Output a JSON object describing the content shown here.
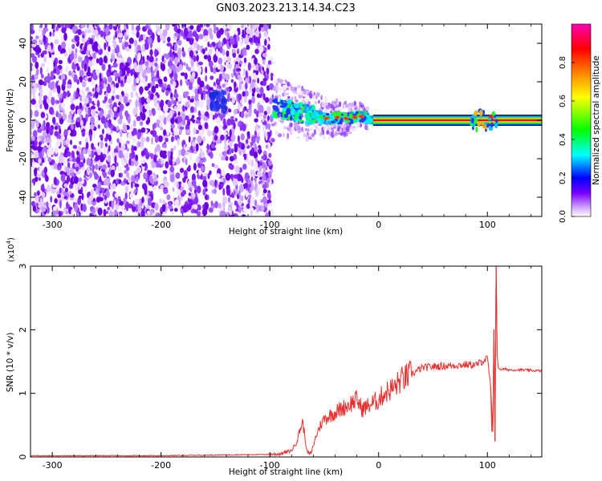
{
  "title": "GN03.2023.213.14.34.C23",
  "chart_data": [
    {
      "type": "heatmap",
      "xlabel": "Height of straight line (km)",
      "ylabel": "Frequency (Hz)",
      "xlim": [
        -320,
        150
      ],
      "ylim": [
        -50,
        50
      ],
      "x_ticks": [
        -300,
        -200,
        -100,
        0,
        100
      ],
      "y_ticks": [
        -40,
        -20,
        0,
        20,
        40
      ],
      "colorbar": {
        "label": "Normalized spectral amplitude",
        "range": [
          0,
          1
        ],
        "ticks": [
          0.0,
          0.2,
          0.4,
          0.6,
          0.8
        ],
        "colors": [
          "#ffffff",
          "#7a00ff",
          "#0000ff",
          "#00ffff",
          "#00ff00",
          "#ffff00",
          "#ff7f00",
          "#ff0000",
          "#ff00b0"
        ]
      },
      "regions": [
        {
          "x_range": [
            -320,
            -98
          ],
          "freq_range": [
            -50,
            50
          ],
          "amplitude": "0.0-0.2",
          "pattern": "noise"
        },
        {
          "x_range": [
            -98,
            -10
          ],
          "freq_center": [
            [
              -98,
              6
            ],
            [
              -80,
              5
            ],
            [
              -65,
              3
            ],
            [
              -50,
              1
            ],
            [
              -30,
              1
            ],
            [
              -15,
              2
            ],
            [
              -5,
              0
            ]
          ],
          "amplitude": "0.2-0.7"
        },
        {
          "x_range": [
            -5,
            150
          ],
          "freq_center": 0,
          "amplitude": "0.9-1.0",
          "pattern": "narrow band"
        },
        {
          "x_range": [
            85,
            110
          ],
          "freq_center": 0,
          "amplitude": "0.6-0.9"
        },
        {
          "x_center": -148,
          "freq_center": 10,
          "amplitude": "0.2-0.3",
          "pattern": "blob"
        }
      ]
    },
    {
      "type": "line",
      "xlabel": "Height of straight line (km)",
      "ylabel": "SNR (10 * v/v)",
      "y_scale_label": "(x10",
      "y_scale_exp": "4",
      "y_scale_close": ")",
      "xlim": [
        -320,
        150
      ],
      "ylim": [
        0,
        3
      ],
      "x_ticks": [
        -300,
        -200,
        -100,
        0,
        100
      ],
      "y_ticks": [
        0,
        1,
        2,
        3
      ],
      "line_color": "#e8302e",
      "series": [
        {
          "x": [
            -320,
            -250,
            -200,
            -150,
            -100,
            -90,
            -80,
            -75,
            -72,
            -70,
            -68,
            -66,
            -64,
            -62,
            -58,
            -55,
            -50,
            -45,
            -40,
            -35,
            -30,
            -25,
            -20,
            -15,
            -10,
            -5,
            0,
            5,
            10,
            15,
            20,
            25,
            30,
            35,
            40,
            50,
            60,
            70,
            80,
            90,
            95,
            100,
            103,
            105,
            106,
            107,
            108,
            109,
            110,
            112,
            115,
            120,
            130,
            140,
            150
          ],
          "y": [
            0.02,
            0.02,
            0.02,
            0.03,
            0.04,
            0.05,
            0.1,
            0.25,
            0.45,
            0.55,
            0.35,
            0.1,
            0.05,
            0.06,
            0.3,
            0.45,
            0.6,
            0.65,
            0.7,
            0.75,
            0.8,
            0.85,
            0.9,
            0.75,
            0.8,
            0.85,
            0.9,
            1.0,
            1.05,
            1.1,
            1.2,
            1.25,
            1.3,
            1.35,
            1.4,
            1.42,
            1.43,
            1.44,
            1.45,
            1.45,
            1.5,
            1.55,
            1.1,
            0.4,
            2.0,
            0.25,
            3.0,
            1.6,
            1.4,
            1.38,
            1.38,
            1.37,
            1.37,
            1.36,
            1.35
          ]
        }
      ]
    }
  ]
}
